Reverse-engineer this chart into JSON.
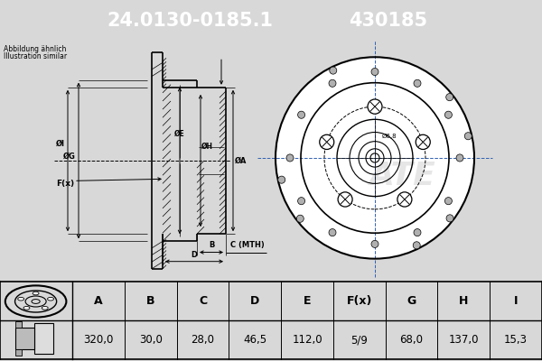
{
  "title_part_number": "24.0130-0185.1",
  "title_ref_number": "430185",
  "subtitle1": "Abbildung ähnlich",
  "subtitle2": "Illustration similar",
  "header_bg": "#1a5fa8",
  "header_text_color": "#ffffff",
  "bg_color": "#d8d8d8",
  "drawing_bg": "#d8d8d8",
  "table_bg": "#ffffff",
  "table_headers": [
    "A",
    "B",
    "C",
    "D",
    "E",
    "F(x)",
    "G",
    "H",
    "I"
  ],
  "table_values": [
    "320,0",
    "30,0",
    "28,0",
    "46,5",
    "112,0",
    "5/9",
    "68,0",
    "137,0",
    "15,3"
  ],
  "fig_width": 6.0,
  "fig_height": 4.0,
  "dpi": 100
}
